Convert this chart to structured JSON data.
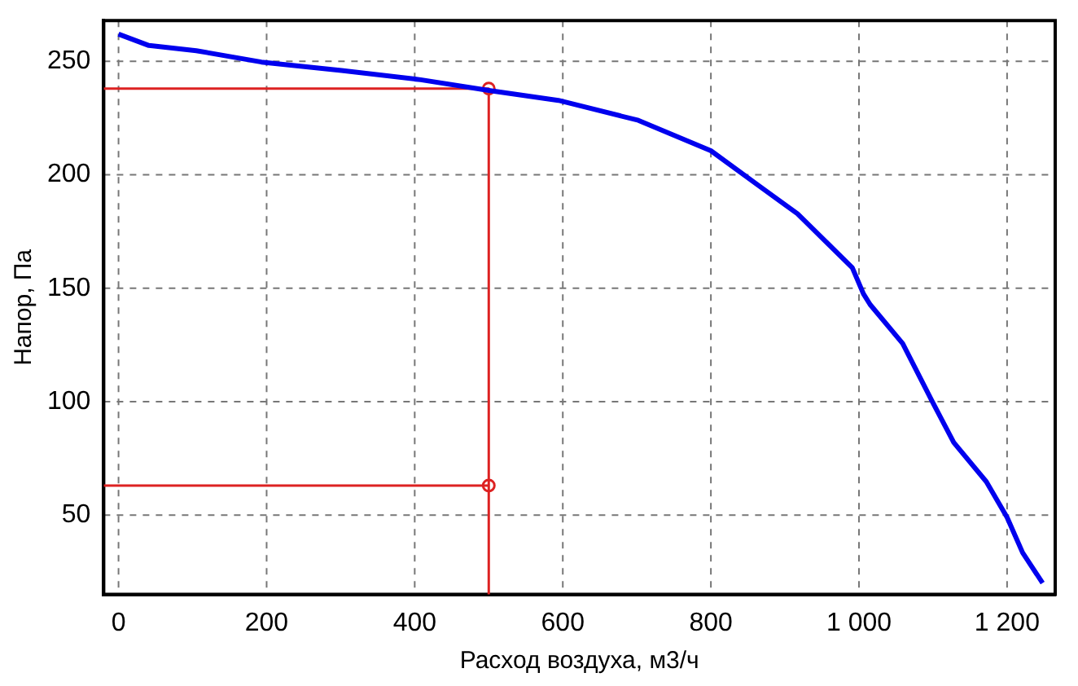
{
  "chart_data": {
    "type": "line",
    "xlabel": "Расход воздуха, м3/ч",
    "ylabel": "Напор, Па",
    "xlim": [
      -20,
      1265
    ],
    "ylim": [
      15,
      268
    ],
    "xticks": [
      0,
      200,
      400,
      600,
      {
        "value": 800,
        "label": "800"
      },
      {
        "value": 1000,
        "label": "1 000"
      },
      {
        "value": 1200,
        "label": "1 200"
      }
    ],
    "yticks": [
      50,
      100,
      150,
      200,
      250
    ],
    "grid": true,
    "legend": false,
    "series": [
      {
        "type": "line",
        "color": "#0000ee",
        "marker": "none",
        "x": [
          0,
          41,
          105,
          193,
          301,
          408,
          500,
          594,
          702,
          800,
          868,
          917,
          991,
          1006,
          1015,
          1059,
          1099,
          1128,
          1172,
          1200,
          1221,
          1248
        ],
        "values": [
          262,
          257,
          254.7,
          249.7,
          246,
          241.9,
          237.2,
          232.8,
          224,
          210.6,
          194.4,
          182.8,
          159,
          147.5,
          142.8,
          125.6,
          100,
          82,
          64.7,
          49,
          33.4,
          20
        ]
      },
      {
        "type": "line",
        "color": "#dd2222",
        "marker": "none",
        "x": [
          -20,
          500,
          500
        ],
        "values": [
          238,
          238,
          15
        ]
      },
      {
        "type": "line",
        "color": "#dd2222",
        "marker": "none",
        "x": [
          -20,
          500
        ],
        "values": [
          63,
          63
        ]
      },
      {
        "type": "scatter",
        "color": "#dd2222",
        "marker": "circle",
        "x": [
          500,
          500
        ],
        "values": [
          238,
          63
        ]
      }
    ]
  }
}
